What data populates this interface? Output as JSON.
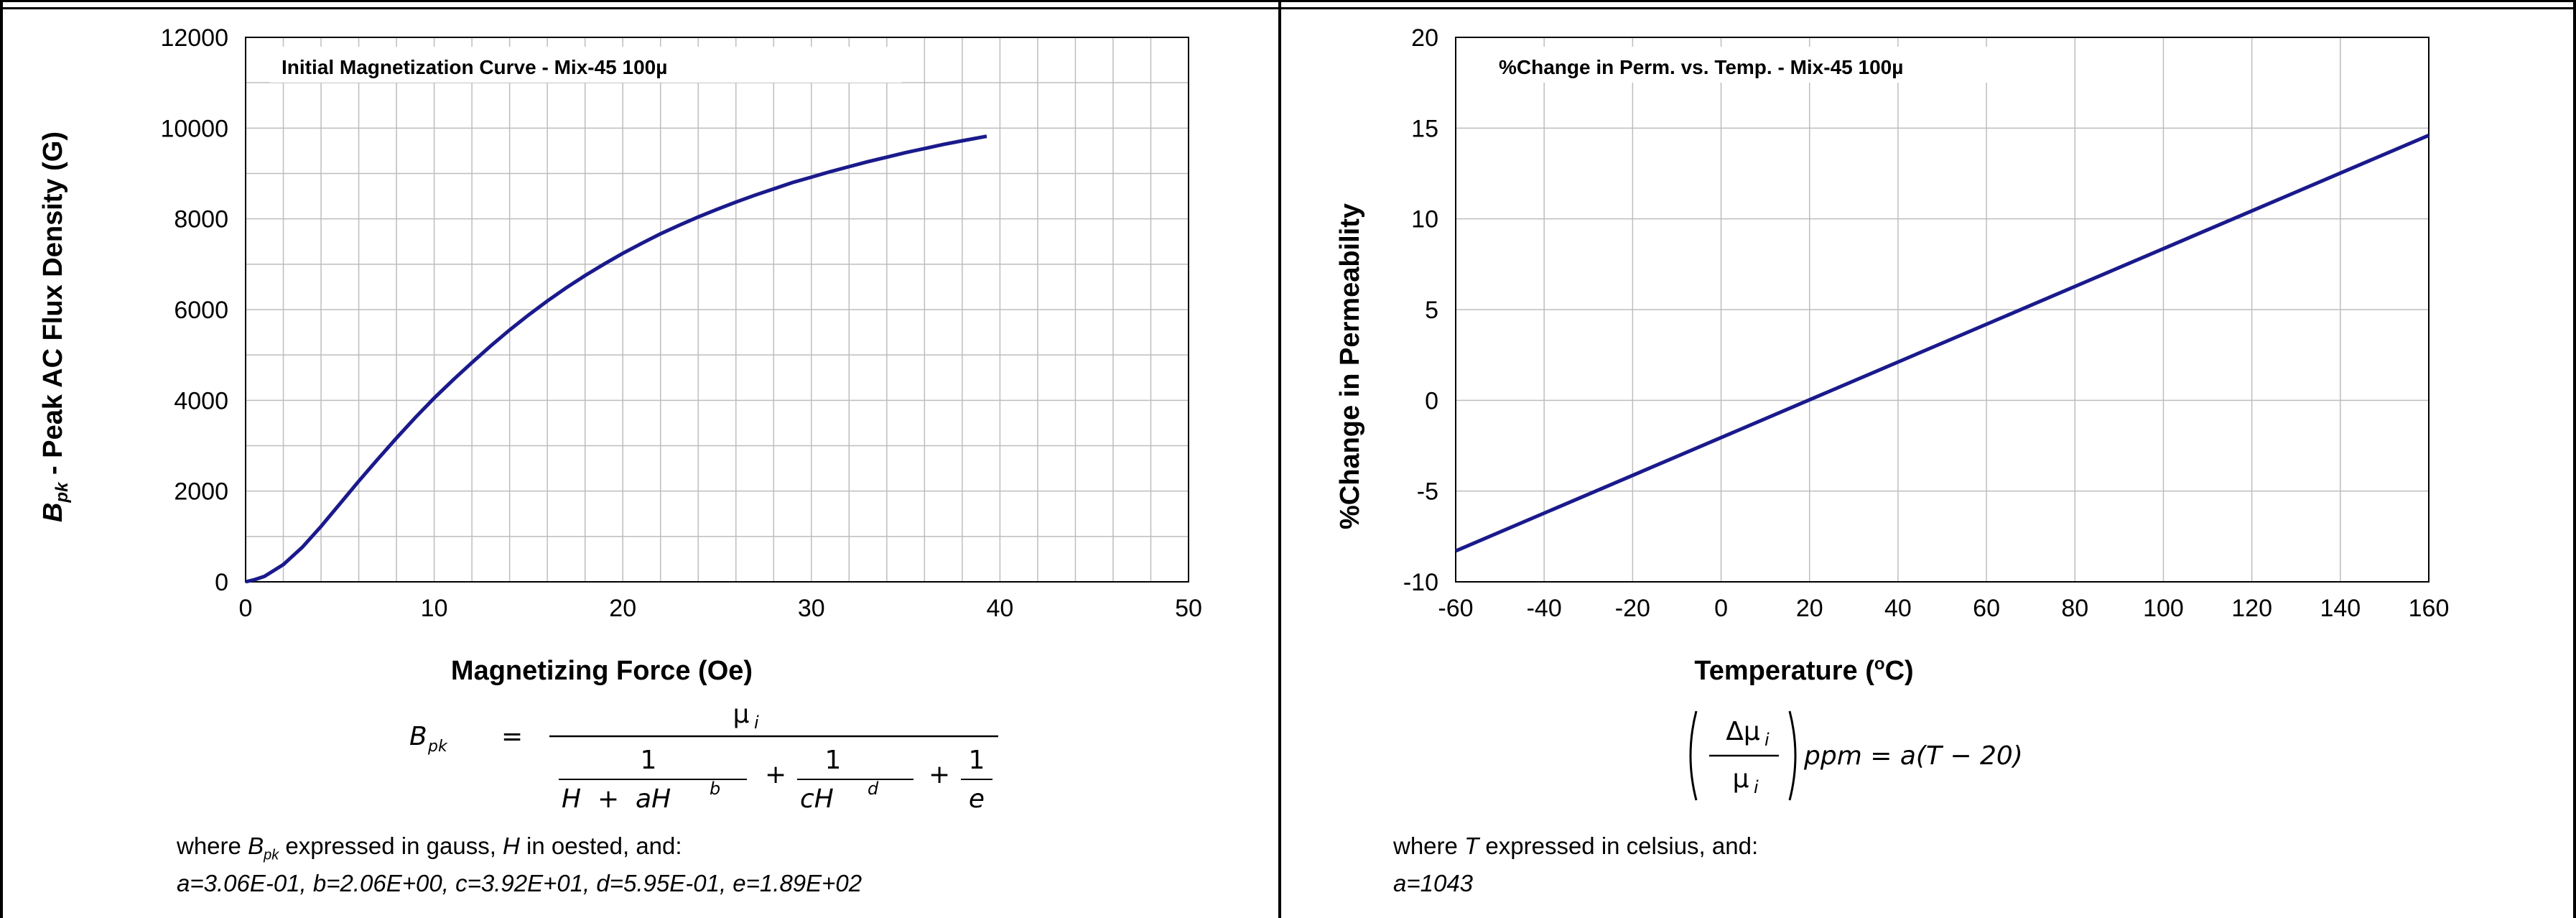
{
  "colors": {
    "curve": "#1a1a8c",
    "grid": "#bdbdbd",
    "axis": "#000000"
  },
  "chart_data": [
    {
      "type": "line",
      "title": "Initial Magnetization Curve - Mix-45  100µ",
      "xlabel": "Magnetizing Force (Oe)",
      "ylabel_symbol": "B",
      "ylabel_sub": "pk",
      "ylabel_rest": " - Peak AC Flux Density (G)",
      "xlim": [
        0,
        50
      ],
      "ylim": [
        0,
        12000
      ],
      "x_ticks": [
        "0",
        "10",
        "20",
        "30",
        "40",
        "50"
      ],
      "y_ticks": [
        "0",
        "2000",
        "4000",
        "6000",
        "8000",
        "10000",
        "12000"
      ],
      "grid": true,
      "x_minor_step": 2,
      "y_minor_step": 1000,
      "series": [
        {
          "x": [
            0,
            0.5,
            1,
            2,
            3,
            4,
            5,
            6,
            7,
            8,
            9,
            10,
            11,
            12,
            13,
            14,
            15,
            16,
            17,
            18,
            19,
            20,
            21,
            22,
            23,
            24,
            25,
            26,
            27,
            28,
            29,
            30,
            31,
            32,
            33,
            34,
            35,
            36,
            37,
            38,
            39.3
          ],
          "y": [
            0,
            50,
            120,
            380,
            760,
            1220,
            1720,
            2220,
            2700,
            3170,
            3620,
            4050,
            4450,
            4830,
            5200,
            5550,
            5880,
            6190,
            6480,
            6750,
            7000,
            7240,
            7460,
            7670,
            7860,
            8040,
            8210,
            8370,
            8520,
            8660,
            8800,
            8920,
            9040,
            9150,
            9260,
            9360,
            9460,
            9550,
            9640,
            9720,
            9820
          ]
        }
      ]
    },
    {
      "type": "line",
      "title": "%Change in Perm. vs. Temp. - Mix-45  100µ",
      "xlabel": "Temperature (°C)",
      "ylabel": "%Change in Permeability",
      "xlim": [
        -60,
        160
      ],
      "ylim": [
        -10,
        20
      ],
      "x_ticks": [
        "-60",
        "-40",
        "-20",
        "0",
        "20",
        "40",
        "60",
        "80",
        "100",
        "120",
        "140",
        "160"
      ],
      "y_ticks": [
        "-10",
        "-5",
        "0",
        "5",
        "10",
        "15",
        "20"
      ],
      "grid": true,
      "series": [
        {
          "x": [
            -60,
            160
          ],
          "y": [
            -8.3,
            14.6
          ]
        }
      ]
    }
  ],
  "formula_left": {
    "lhs": "B",
    "lhs_sub": "pk",
    "eq": "=",
    "numerator": "μ",
    "numerator_sub": "i",
    "t1_num": "1",
    "t1_den_a": "H  +  aH",
    "t1_den_exp": "b",
    "plus": "+",
    "t2_num": "1",
    "t2_den": "cH",
    "t2_den_exp": "d",
    "t3_num": "1",
    "t3_den": "e"
  },
  "note_left": {
    "line1_pre": "where ",
    "line1_sym": "B",
    "line1_sub": "pk",
    "line1_mid": " expressed in gauss, ",
    "line1_h": "H",
    "line1_post": " in oested, and:",
    "line2": "a=3.06E-01,  b=2.06E+00,  c=3.92E+01,  d=5.95E-01,  e=1.89E+02"
  },
  "formula_right": {
    "num": "Δμ",
    "num_sub": "i",
    "den": "μ",
    "den_sub": "i",
    "rhs": "ppm = a(T − 20)"
  },
  "note_right": {
    "line1_pre": "where ",
    "line1_sym": "T",
    "line1_post": " expressed in celsius, and:",
    "line2": "a=1043"
  }
}
